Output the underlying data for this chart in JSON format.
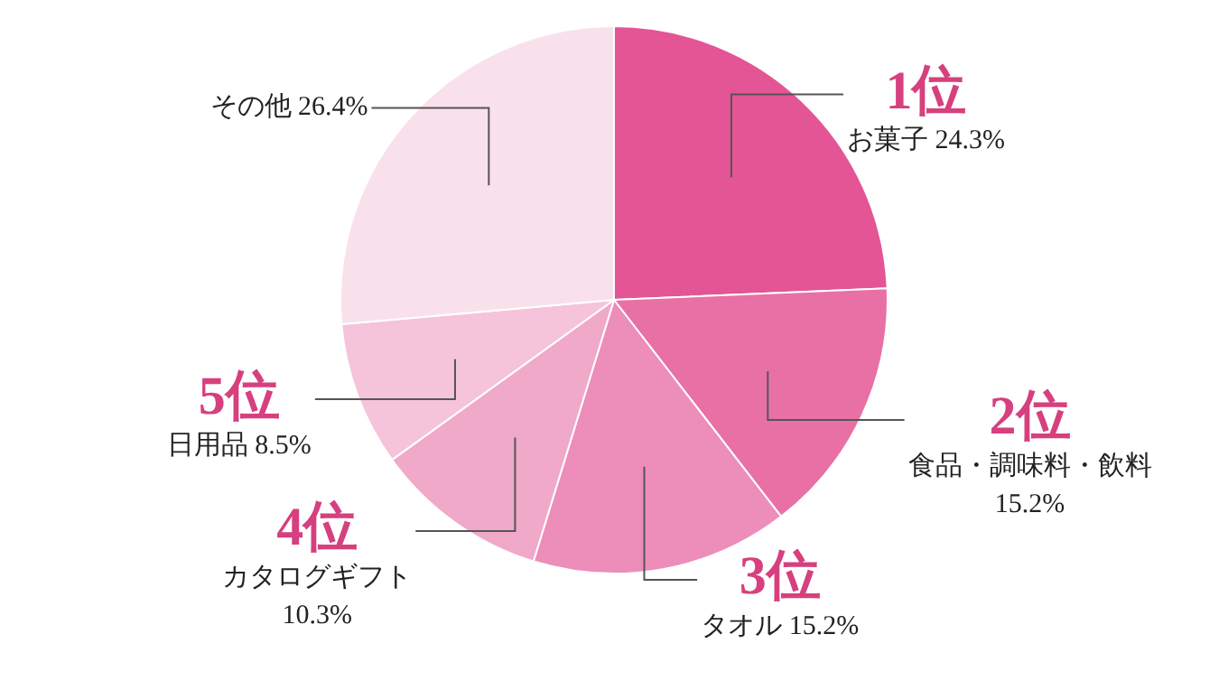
{
  "chart_data": {
    "type": "pie",
    "categories": [
      "お菓子",
      "食品・調味料・飲料",
      "タオル",
      "カタログギフト",
      "日用品",
      "その他"
    ],
    "values": [
      24.3,
      15.2,
      15.2,
      10.3,
      8.5,
      26.4
    ],
    "colors": [
      "#e35594",
      "#e870a5",
      "#ec8dba",
      "#f0a9c9",
      "#f5c3da",
      "#f9e1ec"
    ],
    "value_labels": [
      "24.3%",
      "15.2%",
      "15.2%",
      "10.3%",
      "8.5%",
      "26.4%"
    ],
    "annotations": [
      "1位",
      "2位",
      "3位",
      "4位",
      "5位"
    ],
    "legend": false
  }
}
